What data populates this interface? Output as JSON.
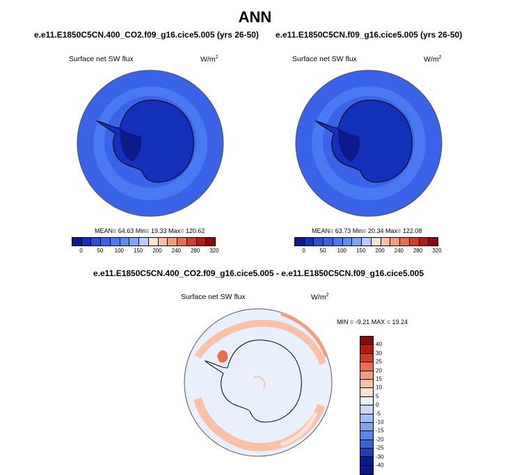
{
  "page": {
    "title": "ANN"
  },
  "panels": [
    {
      "case": "e.e11.E1850C5CN.400_CO2.f09_g16.cice5.005 (yrs 26-50)",
      "variable": "Surface net SW flux",
      "units_base": "W/m",
      "units_sup": "2",
      "stats": "MEAN=  64.63  Min=  19.33  Max= 120.62",
      "colorbar_ticks": [
        "0",
        "50",
        "100",
        "150",
        "200",
        "240",
        "280",
        "320"
      ]
    },
    {
      "case": "e.e11.E1850C5CN.f09_g16.cice5.005 (yrs 26-50)",
      "variable": "Surface net SW flux",
      "units_base": "W/m",
      "units_sup": "2",
      "stats": "MEAN=  63.73  Min=  20.34  Max= 122.08",
      "colorbar_ticks": [
        "0",
        "50",
        "100",
        "150",
        "200",
        "240",
        "280",
        "320"
      ]
    }
  ],
  "diff": {
    "case": "e.e11.E1850C5CN.400_CO2.f09_g16.cice5.005 - e.e11.E1850C5CN.f09_g16.cice5.005",
    "variable": "Surface net SW flux",
    "units_base": "W/m",
    "units_sup": "2",
    "stats": "MIN =  -9.21 MAX =  19.24",
    "colorbar_ticks": [
      "40",
      "30",
      "25",
      "20",
      "15",
      "10",
      "5",
      "0",
      "-5",
      "-10",
      "-15",
      "-20",
      "-25",
      "-30",
      "-40"
    ]
  },
  "colors": {
    "abs_palette": [
      "#0a1a88",
      "#1530b8",
      "#2a4fd6",
      "#3a63e8",
      "#4a78f0",
      "#5e8cf2",
      "#7da6f5",
      "#b6cef8",
      "#fde3d6",
      "#f9c2a8",
      "#f49d7d",
      "#ea6d4e",
      "#d43c28",
      "#b51a12",
      "#8a0a0a"
    ],
    "diff_palette": [
      "#8a0a0a",
      "#b51a12",
      "#d43c28",
      "#ea6d4e",
      "#f49d7d",
      "#f9c2a8",
      "#fde3d6",
      "#e9f0fb",
      "#cbdbf7",
      "#a4c0f2",
      "#7da4ec",
      "#5a86e2",
      "#3a63d2",
      "#1f40b8",
      "#0a1a88"
    ],
    "ocean_mid": "#4a78f0",
    "ocean_outer": "#3a63e8",
    "antarctica": "#1530b8",
    "diff_bg": "#e9f0fb",
    "diff_pos": "#f9c2a8"
  }
}
